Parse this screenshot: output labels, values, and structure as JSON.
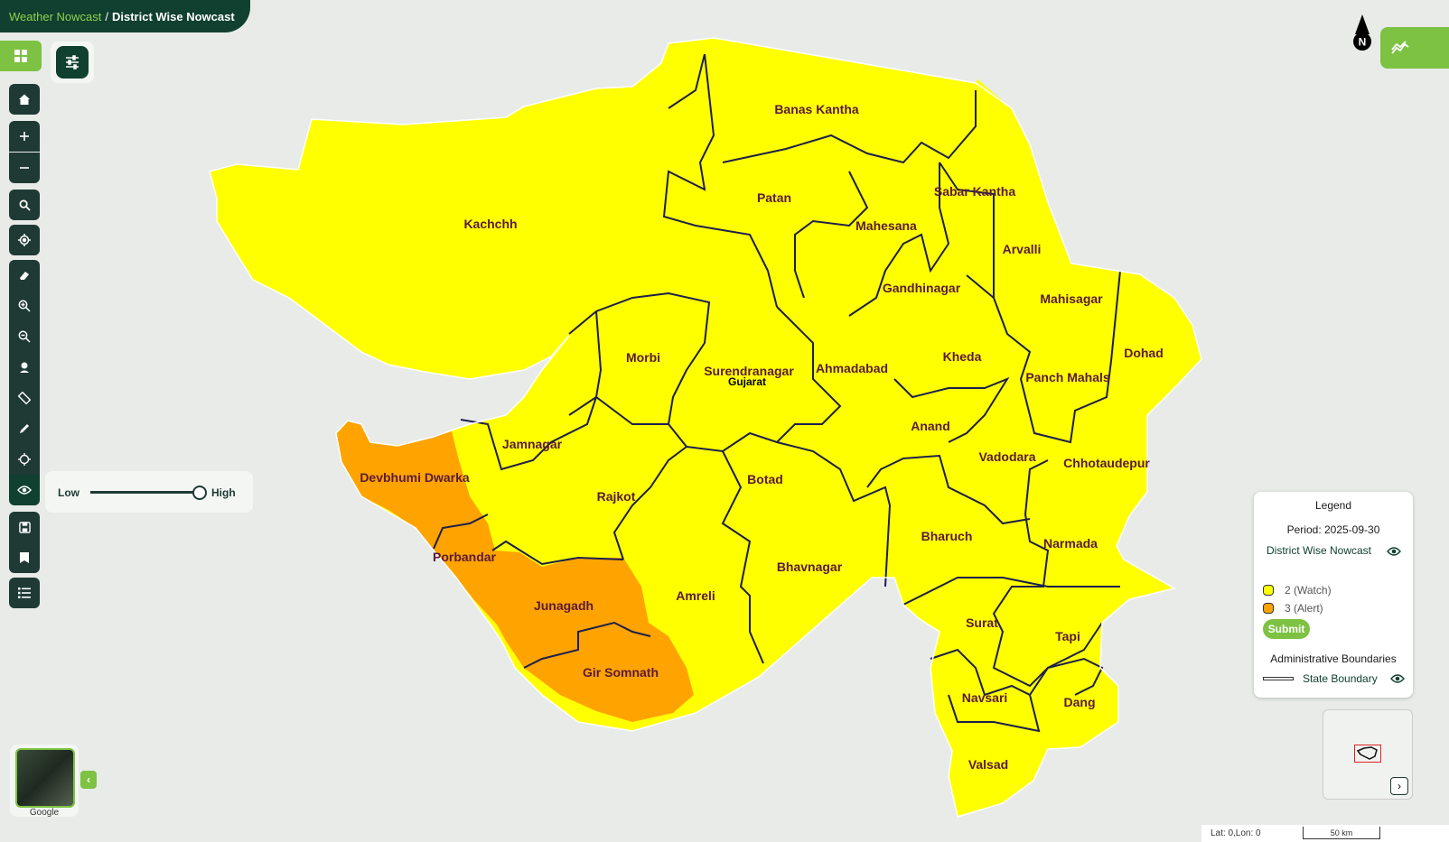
{
  "breadcrumb": {
    "parent": "Weather Nowcast",
    "separator": "/",
    "current": "District Wise Nowcast"
  },
  "map": {
    "state_label": "Gujarat",
    "north_label": "N",
    "colors": {
      "watch": "#ffff00",
      "alert": "#ffa300",
      "boundary": "#1c1f4d",
      "label": "#5a1a3a",
      "background": "#e8ebe8"
    },
    "districts": [
      {
        "name": "Kachchh",
        "category": 2
      },
      {
        "name": "Banas Kantha",
        "category": 2
      },
      {
        "name": "Patan",
        "category": 2
      },
      {
        "name": "Mahesana",
        "category": 2
      },
      {
        "name": "Sabar Kantha",
        "category": 2
      },
      {
        "name": "Arvalli",
        "category": 2
      },
      {
        "name": "Gandhinagar",
        "category": 2
      },
      {
        "name": "Mahisagar",
        "category": 2
      },
      {
        "name": "Dohad",
        "category": 2
      },
      {
        "name": "Morbi",
        "category": 2
      },
      {
        "name": "Surendranagar",
        "category": 2
      },
      {
        "name": "Ahmadabad",
        "category": 2
      },
      {
        "name": "Kheda",
        "category": 2
      },
      {
        "name": "Panch Mahals",
        "category": 2
      },
      {
        "name": "Jamnagar",
        "category": 2
      },
      {
        "name": "Anand",
        "category": 2
      },
      {
        "name": "Vadodara",
        "category": 2
      },
      {
        "name": "Chhotaudepur",
        "category": 2
      },
      {
        "name": "Devbhumi Dwarka",
        "category": 3
      },
      {
        "name": "Rajkot",
        "category": 2
      },
      {
        "name": "Botad",
        "category": 2
      },
      {
        "name": "Bharuch",
        "category": 2
      },
      {
        "name": "Porbandar",
        "category": 3
      },
      {
        "name": "Narmada",
        "category": 2
      },
      {
        "name": "Bhavnagar",
        "category": 2
      },
      {
        "name": "Junagadh",
        "category": 3
      },
      {
        "name": "Amreli",
        "category": 2
      },
      {
        "name": "Surat",
        "category": 2
      },
      {
        "name": "Tapi",
        "category": 2
      },
      {
        "name": "Gir Somnath",
        "category": 3
      },
      {
        "name": "Navsari",
        "category": 2
      },
      {
        "name": "Dang",
        "category": 2
      },
      {
        "name": "Valsad",
        "category": 2
      }
    ]
  },
  "sidebar": {
    "tools": [
      "grid-icon",
      "home-icon",
      "plus-icon",
      "minus-icon",
      "search-icon",
      "locate-icon",
      "eraser-icon",
      "zoom-in-icon",
      "zoom-out-icon",
      "marker-icon",
      "ruler-icon",
      "draw-icon",
      "crosshair-icon",
      "eye-icon",
      "save-icon",
      "bookmark-icon",
      "list-icon"
    ]
  },
  "opacity_slider": {
    "low_label": "Low",
    "high_label": "High",
    "value_fraction": 1.0
  },
  "legend": {
    "title": "Legend",
    "period": "Period: 2025-09-30",
    "layer_name": "District Wise Nowcast",
    "categories": [
      {
        "label": "2 (Watch)",
        "color": "#ffff00"
      },
      {
        "label": "3 (Alert)",
        "color": "#ffa300"
      }
    ],
    "submit_label": "Submit",
    "admin_title": "Administrative Boundaries",
    "boundary_label": "State Boundary"
  },
  "basemap": {
    "label": "Google"
  },
  "status": {
    "coords": "Lat: 0,Lon: 0",
    "scale_label": "50 km"
  },
  "overview": {
    "toggle_label": "›"
  }
}
